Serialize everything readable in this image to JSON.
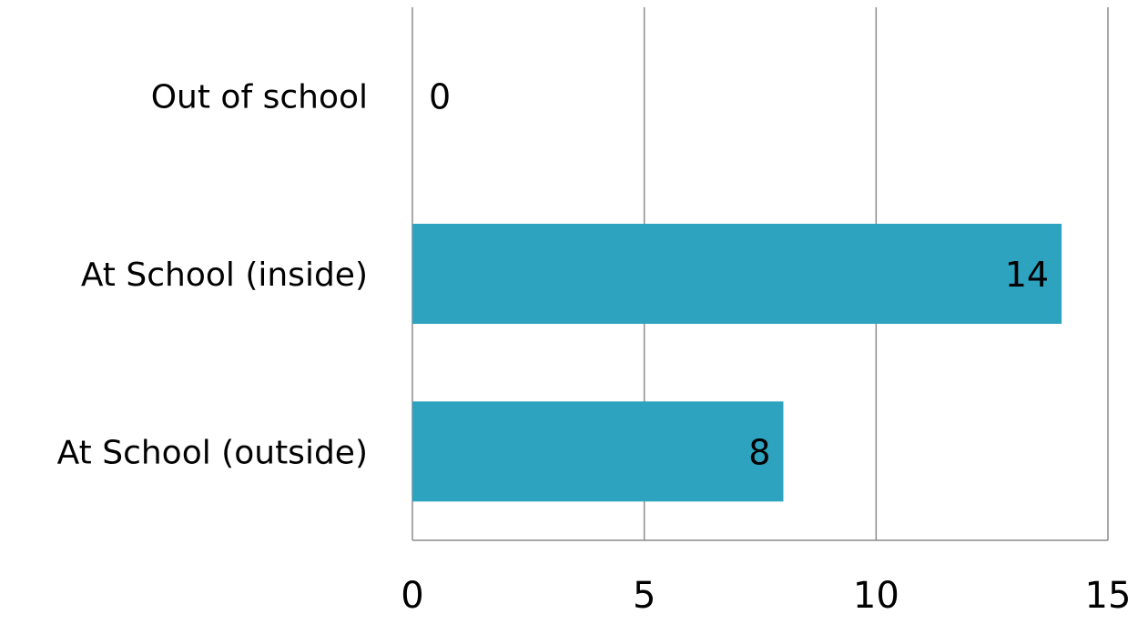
{
  "chart_data": {
    "type": "bar",
    "orientation": "horizontal",
    "categories": [
      "Out of school",
      "At School (inside)",
      "At School (outside)"
    ],
    "values": [
      0,
      14,
      8
    ],
    "data_labels": [
      "0",
      "14",
      "8"
    ],
    "xlim": [
      0,
      15
    ],
    "x_ticks": [
      0,
      5,
      10,
      15
    ],
    "x_tick_labels": [
      "0",
      "5",
      "10",
      "15"
    ],
    "grid": true,
    "legend": false,
    "bar_color": "#2ea3bf"
  }
}
